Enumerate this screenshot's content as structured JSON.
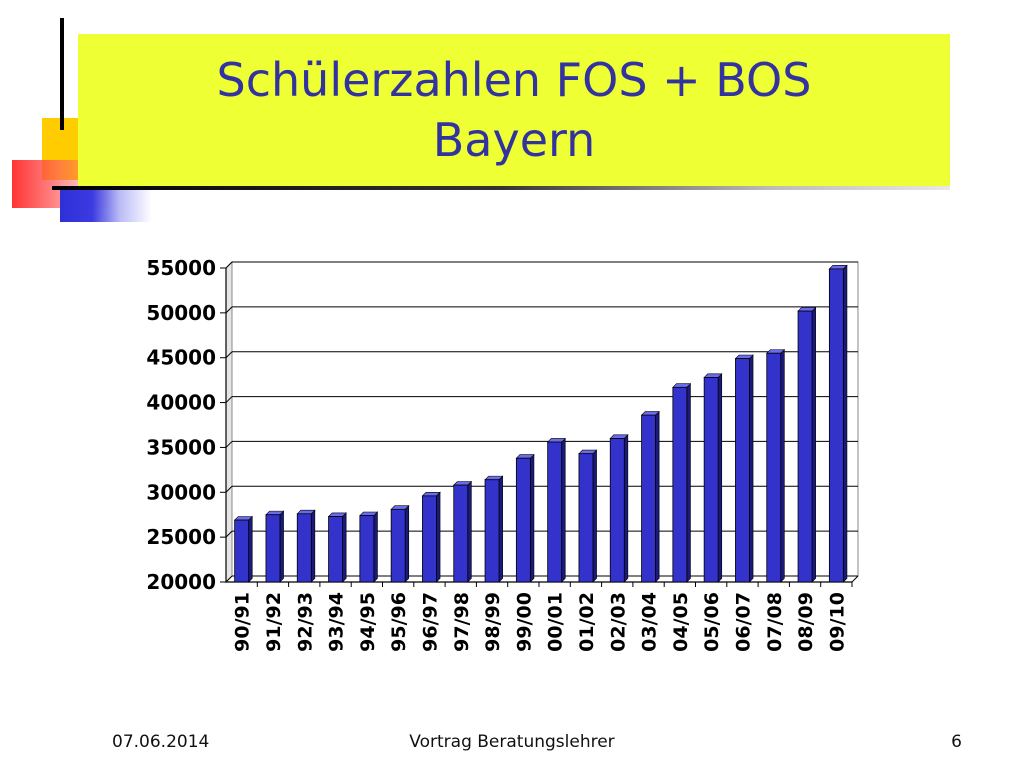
{
  "slide": {
    "title": "Schülerzahlen FOS + BOS Bayern",
    "footer_date": "07.06.2014",
    "footer_center": "Vortrag Beratungslehrer",
    "page_number": "6"
  },
  "colors": {
    "title_background": "#eeff33",
    "title_text": "#3333a0",
    "bar_front": "#3333cc",
    "bar_top": "#6b6bee",
    "bar_side": "#1a1a7a"
  },
  "chart_data": {
    "type": "bar",
    "title": "",
    "xlabel": "",
    "ylabel": "",
    "ylim": [
      20000,
      55000
    ],
    "yticks": [
      20000,
      25000,
      30000,
      35000,
      40000,
      45000,
      50000,
      55000
    ],
    "grid": true,
    "legend": "none",
    "categories": [
      "90/91",
      "91/92",
      "92/93",
      "93/94",
      "94/95",
      "95/96",
      "96/97",
      "97/98",
      "98/99",
      "99/00",
      "00/01",
      "01/02",
      "02/03",
      "03/04",
      "04/05",
      "05/06",
      "06/07",
      "07/08",
      "08/09",
      "09/10"
    ],
    "values": [
      26900,
      27500,
      27600,
      27300,
      27400,
      28100,
      29600,
      30800,
      31400,
      33800,
      35600,
      34300,
      36000,
      38600,
      41700,
      42800,
      44900,
      45500,
      50200,
      54900
    ]
  }
}
